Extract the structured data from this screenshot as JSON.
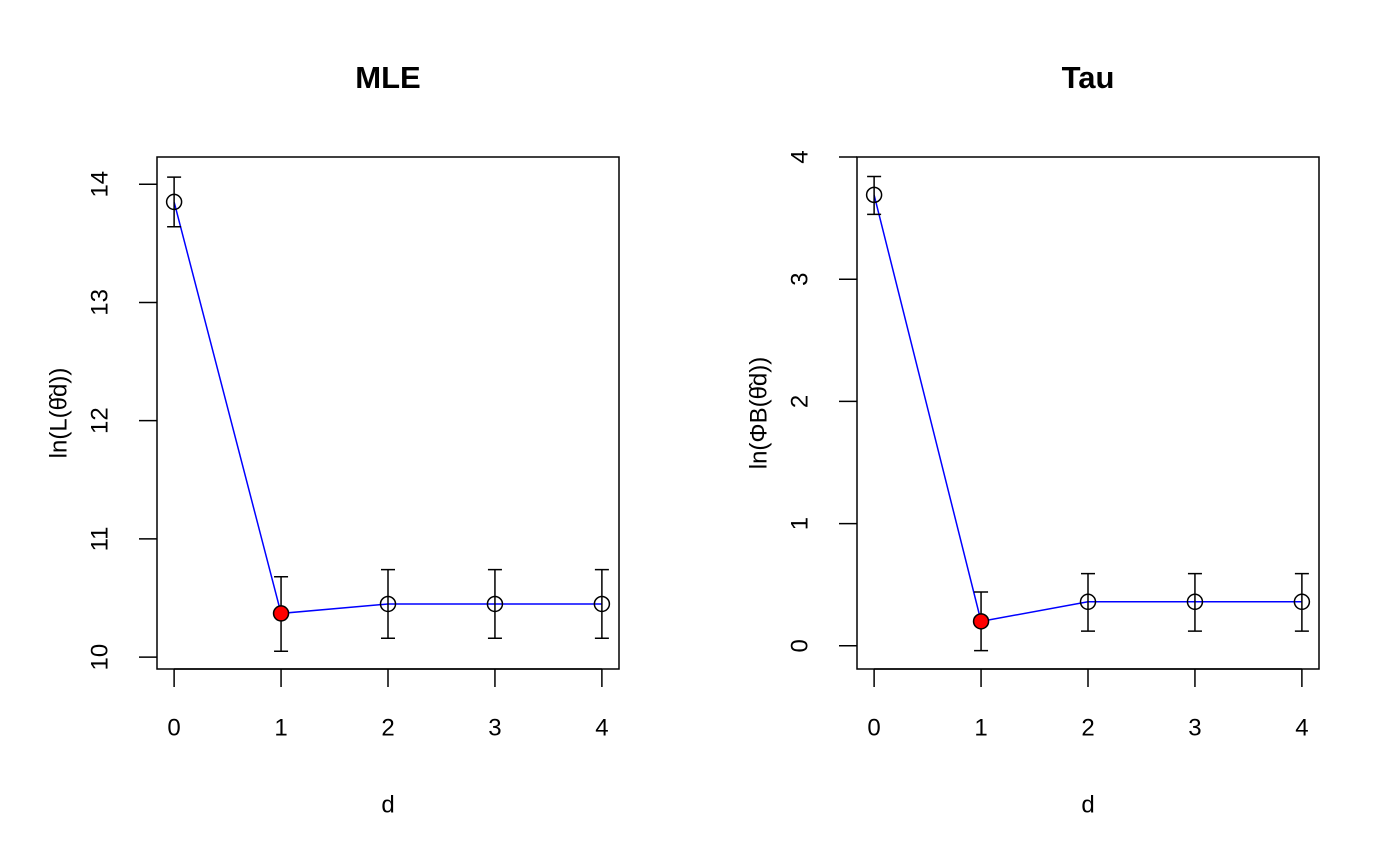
{
  "chart_data": [
    {
      "type": "errorbar-line",
      "title": "MLE",
      "xlabel": "d",
      "ylabel": "ln(L(θ̂d))",
      "x": [
        0,
        1,
        2,
        3,
        4
      ],
      "values": [
        13.85,
        10.37,
        10.45,
        10.45,
        10.45
      ],
      "lower": [
        13.64,
        10.05,
        10.16,
        10.16,
        10.16
      ],
      "upper": [
        14.06,
        10.68,
        10.74,
        10.74,
        10.74
      ],
      "line_color": "#0000ff",
      "point_colors": [
        "none",
        "#ff0000",
        "none",
        "none",
        "none"
      ],
      "xlim": [
        -0.16,
        4.16
      ],
      "xticks": [
        0,
        1,
        2,
        3,
        4
      ],
      "ylim": [
        9.9,
        14.23
      ],
      "yticks": [
        10,
        11,
        12,
        13,
        14
      ]
    },
    {
      "type": "errorbar-line",
      "title": "Tau",
      "xlabel": "d",
      "ylabel": "ln(ΦB(θ̂d))",
      "x": [
        0,
        1,
        2,
        3,
        4
      ],
      "values": [
        3.69,
        0.2,
        0.36,
        0.36,
        0.36
      ],
      "lower": [
        3.53,
        -0.04,
        0.12,
        0.12,
        0.12
      ],
      "upper": [
        3.84,
        0.44,
        0.59,
        0.59,
        0.59
      ],
      "line_color": "#0000ff",
      "point_colors": [
        "none",
        "#ff0000",
        "none",
        "none",
        "none"
      ],
      "xlim": [
        -0.16,
        4.16
      ],
      "xticks": [
        0,
        1,
        2,
        3,
        4
      ],
      "ylim": [
        -0.19,
        4.0
      ],
      "yticks": [
        0,
        1,
        2,
        3,
        4
      ]
    }
  ]
}
